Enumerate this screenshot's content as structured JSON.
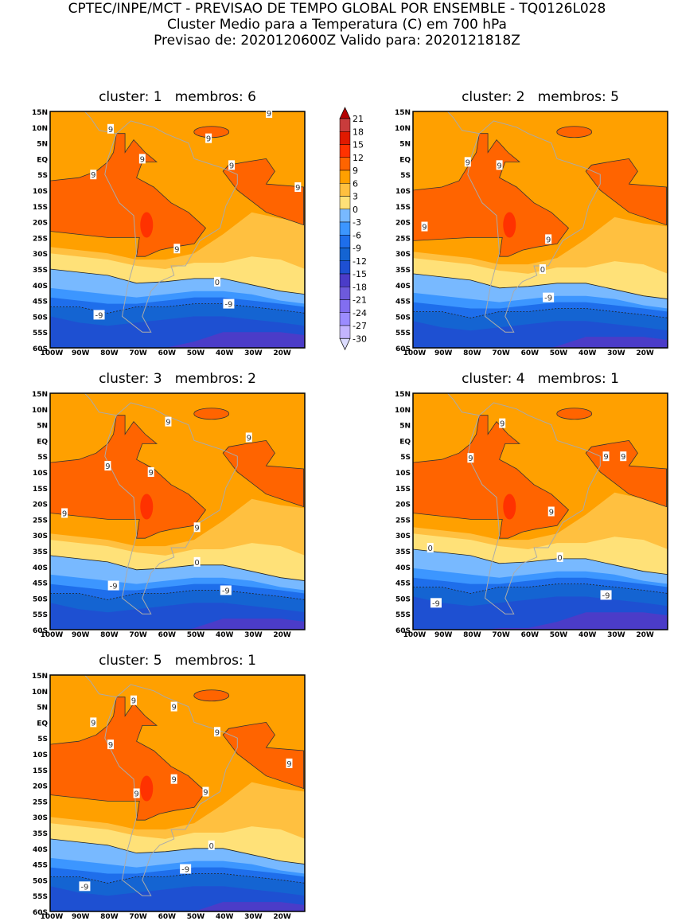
{
  "header": {
    "line1": "CPTEC/INPE/MCT - PREVISAO DE TEMPO GLOBAL POR ENSEMBLE - TQ0126L028",
    "line2": "Cluster Medio para a Temperatura (C) em 700 hPa",
    "line3": "Previsao de: 2020120600Z    Valido para: 2020121818Z"
  },
  "axes": {
    "lat_labels": [
      "15N",
      "10N",
      "5N",
      "EQ",
      "5S",
      "10S",
      "15S",
      "20S",
      "25S",
      "30S",
      "35S",
      "40S",
      "45S",
      "50S",
      "55S",
      "60S"
    ],
    "lon_labels": [
      "100W",
      "90W",
      "80W",
      "70W",
      "60W",
      "50W",
      "40W",
      "30W",
      "20W"
    ]
  },
  "panels": [
    {
      "title": "cluster: 1   membros: 6",
      "contour_labels": [
        "9",
        "9",
        "9",
        "9",
        "9",
        "9",
        "9",
        "9",
        "0",
        "-9",
        "-9"
      ]
    },
    {
      "title": "cluster: 2   membros: 5",
      "contour_labels": [
        "9",
        "9",
        "9",
        "9",
        "0",
        "-9"
      ]
    },
    {
      "title": "cluster: 3   membros: 2",
      "contour_labels": [
        "9",
        "9",
        "9",
        "9",
        "9",
        "9",
        "0",
        "-9",
        "-9"
      ]
    },
    {
      "title": "cluster: 4   membros: 1",
      "contour_labels": [
        "9",
        "9",
        "9",
        "9",
        "9",
        "0",
        "0",
        "-9",
        "-9"
      ]
    },
    {
      "title": "cluster: 5   membros: 1",
      "contour_labels": [
        "9",
        "9",
        "9",
        "9",
        "9",
        "9",
        "9",
        "9",
        "9",
        "0",
        "-9",
        "-9"
      ]
    }
  ],
  "colorbar": {
    "labels": [
      "21",
      "18",
      "15",
      "12",
      "9",
      "6",
      "3",
      "0",
      "-3",
      "-6",
      "-9",
      "-12",
      "-15",
      "-18",
      "-21",
      "-24",
      "-27",
      "-30"
    ],
    "colors": [
      "#c83c3c",
      "#e01a00",
      "#ff3200",
      "#ff6400",
      "#ffa000",
      "#ffc040",
      "#ffe178",
      "#78b9ff",
      "#3c96ff",
      "#1e6eeb",
      "#1464d2",
      "#1e50d2",
      "#4b3cc8",
      "#6e5adc",
      "#826ef0",
      "#9b8cff",
      "#c3b4ff"
    ],
    "over_color": "#b40000",
    "under_color": "#dcdcff"
  }
}
